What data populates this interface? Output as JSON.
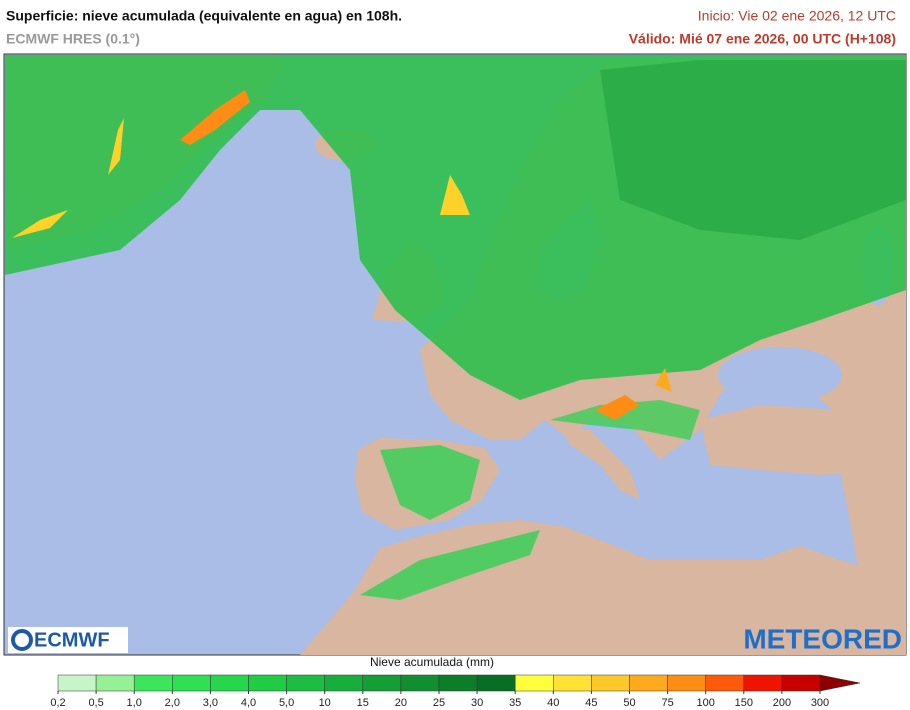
{
  "header": {
    "title": "Superficie: nieve acumulada (equivalente en agua) en 108h.",
    "model": "ECMWF HRES (0.1°)",
    "init": "Inicio: Vie 02 ene 2026, 12 UTC",
    "valid": "Válido: Mié 07 ene 2026, 00 UTC (H+108)"
  },
  "logos": {
    "left": "ECMWF",
    "right": "METEORED"
  },
  "legend": {
    "label": "Nieve acumulada (mm)",
    "ticks": [
      {
        "value": 0.2,
        "label": "0,2"
      },
      {
        "value": 0.5,
        "label": "0,5"
      },
      {
        "value": 1.0,
        "label": "1,0"
      },
      {
        "value": 2.0,
        "label": "2,0"
      },
      {
        "value": 3.0,
        "label": "3,0"
      },
      {
        "value": 4.0,
        "label": "4,0"
      },
      {
        "value": 5.0,
        "label": "5,0"
      },
      10,
      15,
      20,
      25,
      30,
      35,
      40,
      45,
      50,
      75,
      100,
      150,
      200,
      300
    ],
    "colors": [
      "#c8f5c8",
      "#96f096",
      "#3ce65a",
      "#2ee052",
      "#26d64b",
      "#20cb46",
      "#1cbd42",
      "#18ae3c",
      "#149e36",
      "#108e30",
      "#0c7e2a",
      "#086e24",
      "#ffff3c",
      "#ffe234",
      "#ffc82a",
      "#ffaa1e",
      "#ff8c14",
      "#ff5a0a",
      "#f01400",
      "#c80000",
      "#8c0000"
    ]
  }
}
